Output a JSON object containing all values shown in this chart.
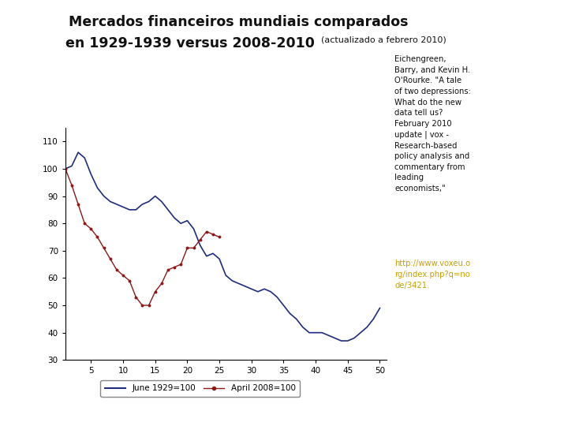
{
  "title_line1": "Mercados financeiros mundiais comparados",
  "title_line2": "en 1929-1939 versus 2008-2010",
  "title_subtitle": "(actualizado a febrero 2010)",
  "background_color": "#ffffff",
  "border_color": "#aaaaaa",
  "line1_color": "#1f2d7a",
  "line2_color": "#8b1a1a",
  "line1_label": "June 1929=100",
  "line2_label": "April 2008=100",
  "annotation_text": "Eichengreen,\nBarry, and Kevin H.\nO'Rourke. \"A tale\nof two depressions:\nWhat do the new\ndata tell us?\nFebruary 2010\nupdate | vox -\nResearch-based\npolicy analysis and\ncommentary from\nleading\neconomists,\"",
  "annotation_url": "http://www.voxeu.o\nrg/index.php?q=no\nde/3421.",
  "ylim": [
    30,
    115
  ],
  "xlim": [
    1,
    51
  ],
  "yticks": [
    30,
    40,
    50,
    60,
    70,
    80,
    90,
    100,
    110
  ],
  "xticks": [
    5,
    10,
    15,
    20,
    25,
    30,
    35,
    40,
    45,
    50
  ],
  "june1929_x": [
    1,
    2,
    3,
    4,
    5,
    6,
    7,
    8,
    9,
    10,
    11,
    12,
    13,
    14,
    15,
    16,
    17,
    18,
    19,
    20,
    21,
    22,
    23,
    24,
    25,
    26,
    27,
    28,
    29,
    30,
    31,
    32,
    33,
    34,
    35,
    36,
    37,
    38,
    39,
    40,
    41,
    42,
    43,
    44,
    45,
    46,
    47,
    48,
    49,
    50
  ],
  "june1929_y": [
    100,
    101,
    106,
    104,
    98,
    93,
    90,
    88,
    87,
    86,
    85,
    85,
    87,
    88,
    90,
    88,
    85,
    82,
    80,
    81,
    78,
    72,
    68,
    69,
    67,
    61,
    59,
    58,
    57,
    56,
    55,
    56,
    55,
    53,
    50,
    47,
    45,
    42,
    40,
    40,
    40,
    39,
    38,
    37,
    37,
    38,
    40,
    42,
    45,
    49
  ],
  "april2008_x": [
    1,
    2,
    3,
    4,
    5,
    6,
    7,
    8,
    9,
    10,
    11,
    12,
    13,
    14,
    15,
    16,
    17,
    18,
    19,
    20,
    21,
    22,
    23,
    24,
    25
  ],
  "april2008_y": [
    100,
    94,
    87,
    80,
    78,
    75,
    71,
    67,
    63,
    61,
    59,
    53,
    50,
    50,
    55,
    58,
    63,
    64,
    65,
    71,
    71,
    74,
    77,
    76,
    75
  ]
}
